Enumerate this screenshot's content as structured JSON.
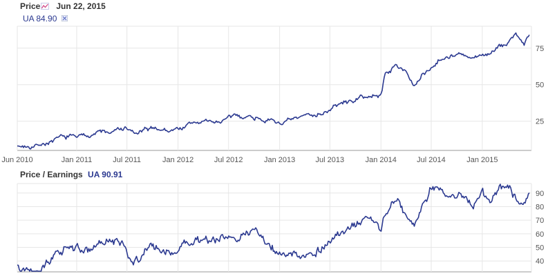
{
  "header": {
    "price_label": "Price",
    "date": "Jun 22, 2015",
    "ticker_value": "UA 84.90",
    "pe_label": "Price / Earnings",
    "pe_value": "UA 90.91"
  },
  "icons": {
    "chart_icon": "line-chart-icon",
    "remove_icon": "close-icon"
  },
  "colors": {
    "series": "#2b3990",
    "grid": "#e6e6e6",
    "axis": "#999999"
  },
  "chart_data": [
    {
      "type": "line",
      "title": "",
      "series": [
        {
          "x": [
            "2010-06-01",
            "2010-07-01",
            "2010-08-01",
            "2010-09-01",
            "2010-10-01",
            "2010-11-01",
            "2010-12-01",
            "2011-01-01",
            "2011-02-01",
            "2011-03-01",
            "2011-04-01",
            "2011-05-01",
            "2011-06-01",
            "2011-07-01",
            "2011-08-01",
            "2011-09-01",
            "2011-10-01",
            "2011-11-01",
            "2011-12-01",
            "2012-01-01",
            "2012-02-01",
            "2012-03-01",
            "2012-04-01",
            "2012-05-01",
            "2012-06-01",
            "2012-07-01",
            "2012-08-01",
            "2012-09-01",
            "2012-10-01",
            "2012-11-01",
            "2012-12-01",
            "2013-01-01",
            "2013-02-01",
            "2013-03-01",
            "2013-04-01",
            "2013-05-01",
            "2013-06-01",
            "2013-07-01",
            "2013-08-01",
            "2013-09-01",
            "2013-10-01",
            "2013-11-01",
            "2013-12-01",
            "2014-01-01",
            "2014-01-15",
            "2014-02-01",
            "2014-03-01",
            "2014-04-01",
            "2014-05-01",
            "2014-06-01",
            "2014-07-01",
            "2014-08-01",
            "2014-09-01",
            "2014-10-01",
            "2014-11-01",
            "2014-12-01",
            "2015-01-01",
            "2015-02-01",
            "2015-03-01",
            "2015-04-01",
            "2015-05-01",
            "2015-06-01",
            "2015-06-22"
          ],
          "values": [
            8,
            8,
            9,
            10,
            11,
            13,
            14,
            15,
            15,
            17,
            18,
            17,
            19,
            20,
            16,
            18,
            20,
            20,
            18,
            20,
            22,
            24,
            25,
            24,
            25,
            27,
            28,
            29,
            28,
            27,
            25,
            24,
            25,
            26,
            28,
            30,
            31,
            33,
            36,
            38,
            40,
            42,
            41,
            43,
            57,
            60,
            63,
            60,
            48,
            57,
            62,
            68,
            70,
            71,
            69,
            67,
            70,
            72,
            75,
            78,
            85,
            78,
            84.9
          ]
        }
      ],
      "xticks": [
        "Jun 2010",
        "Jan 2011",
        "Jul 2011",
        "Jan 2012",
        "Jul 2012",
        "Jan 2013",
        "Jul 2013",
        "Jan 2014",
        "Jul 2014",
        "Jan 2015"
      ],
      "yticks": [
        25,
        50,
        75
      ],
      "ylim": [
        5,
        90
      ],
      "grid": true
    },
    {
      "type": "line",
      "title": "",
      "series": [
        {
          "x": [
            "2010-06-01",
            "2010-08-01",
            "2010-10-01",
            "2010-12-01",
            "2011-02-01",
            "2011-04-01",
            "2011-06-01",
            "2011-08-01",
            "2011-10-01",
            "2011-12-01",
            "2012-02-01",
            "2012-04-01",
            "2012-06-01",
            "2012-08-01",
            "2012-10-01",
            "2012-12-01",
            "2013-02-01",
            "2013-04-01",
            "2013-06-01",
            "2013-08-01",
            "2013-10-01",
            "2013-12-01",
            "2014-01-01",
            "2014-01-15",
            "2014-03-01",
            "2014-04-01",
            "2014-05-01",
            "2014-06-01",
            "2014-07-01",
            "2014-08-01",
            "2014-09-01",
            "2014-10-01",
            "2014-11-01",
            "2014-12-01",
            "2015-01-01",
            "2015-02-01",
            "2015-03-01",
            "2015-04-01",
            "2015-05-01",
            "2015-06-01",
            "2015-06-22"
          ],
          "values": [
            37,
            35,
            44,
            50,
            47,
            52,
            54,
            40,
            50,
            46,
            52,
            56,
            55,
            60,
            62,
            50,
            42,
            44,
            50,
            58,
            65,
            70,
            62,
            75,
            88,
            72,
            65,
            80,
            92,
            90,
            85,
            89,
            88,
            80,
            92,
            84,
            90,
            95,
            86,
            85,
            90.91
          ]
        }
      ],
      "yticks": [
        40,
        50,
        60,
        70,
        80,
        90
      ],
      "ylim": [
        32,
        97
      ],
      "grid": true
    }
  ]
}
